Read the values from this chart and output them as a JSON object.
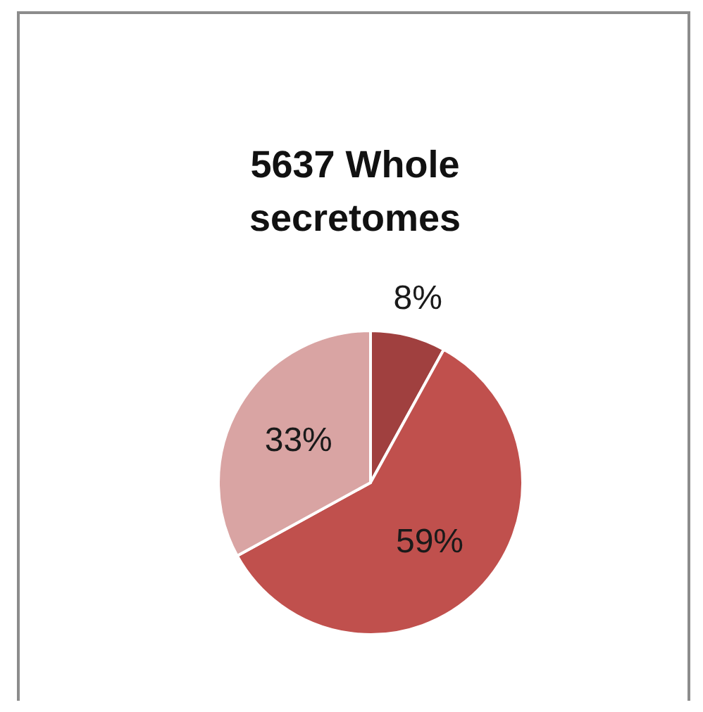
{
  "chart_data": {
    "type": "pie",
    "title": "5637 Whole secretomes",
    "categories": [
      null,
      null,
      null
    ],
    "values": [
      8,
      59,
      33
    ],
    "value_labels": [
      "8%",
      "59%",
      "33%"
    ],
    "colors": [
      "#a0403f",
      "#c0504d",
      "#d9a4a3"
    ]
  }
}
